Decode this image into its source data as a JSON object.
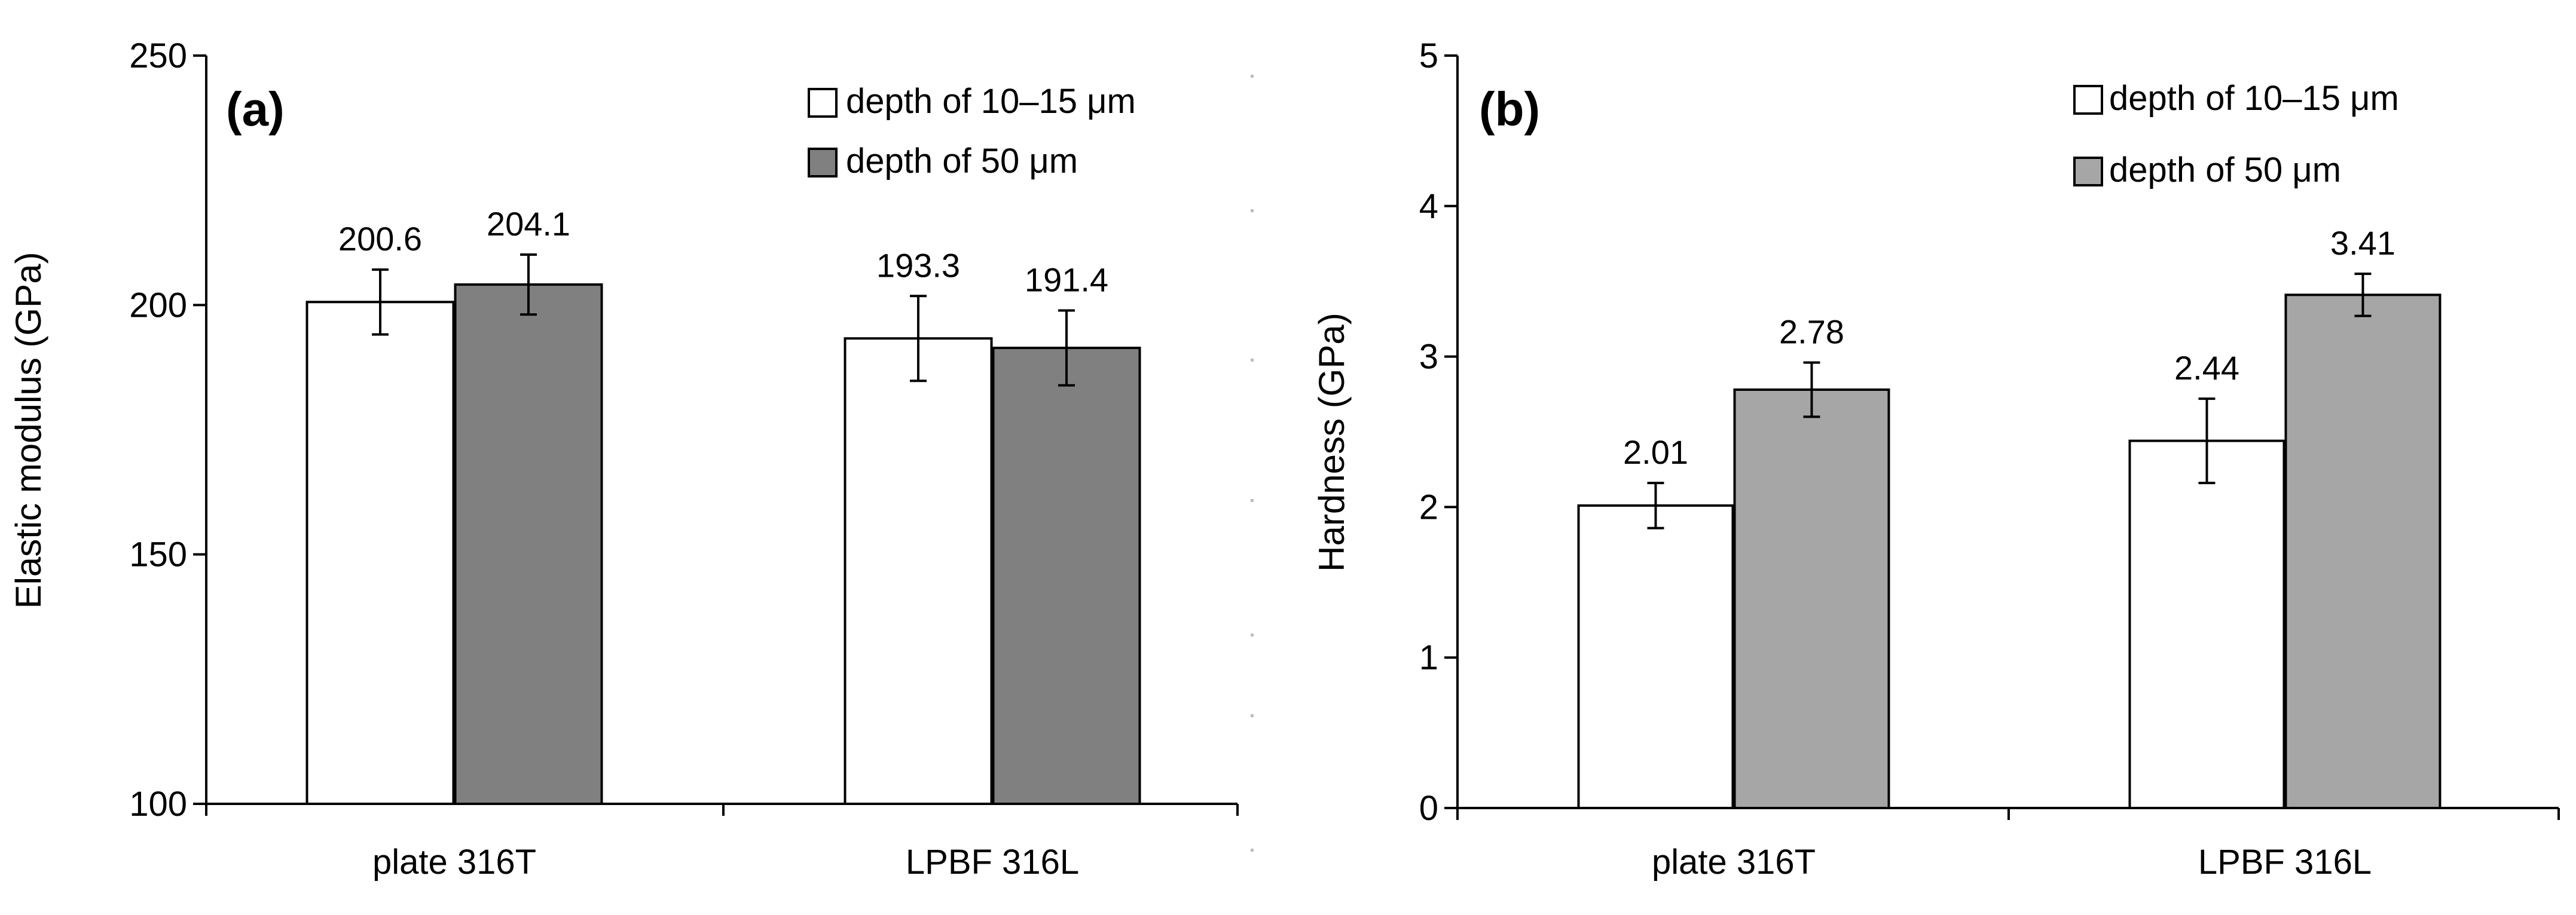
{
  "chart_data": [
    {
      "type": "bar",
      "panel": "(a)",
      "title": "",
      "xlabel": "",
      "ylabel": "Elastic modulus (GPa)",
      "ylim": [
        100,
        250
      ],
      "yticks": [
        100,
        150,
        200,
        250
      ],
      "grid": false,
      "legend_position": "top-right",
      "categories": [
        "plate  316T",
        "LPBF 316L"
      ],
      "series": [
        {
          "name": "depth of 10–15 μm",
          "color": "#ffffff",
          "values": [
            200.6,
            193.3
          ],
          "labels": [
            "200.6",
            "193.3"
          ],
          "error": [
            6.5,
            8.5
          ]
        },
        {
          "name": "depth of 50 μm",
          "color": "#808080",
          "values": [
            204.1,
            191.4
          ],
          "labels": [
            "204.1",
            "191.4"
          ],
          "error": [
            6.0,
            7.5
          ]
        }
      ]
    },
    {
      "type": "bar",
      "panel": "(b)",
      "title": "",
      "xlabel": "",
      "ylabel": "Hardness (GPa)",
      "ylim": [
        0,
        5
      ],
      "yticks": [
        0,
        1,
        2,
        3,
        4,
        5
      ],
      "grid": false,
      "legend_position": "top-right",
      "categories": [
        "plate  316T",
        "LPBF 316L"
      ],
      "series": [
        {
          "name": "depth of 10–15 μm",
          "color": "#ffffff",
          "values": [
            2.01,
            2.44
          ],
          "labels": [
            "2.01",
            "2.44"
          ],
          "error": [
            0.15,
            0.28
          ]
        },
        {
          "name": "depth of 50 μm",
          "color": "#a6a6a6",
          "values": [
            2.78,
            3.41
          ],
          "labels": [
            "2.78",
            "3.41"
          ],
          "error": [
            0.18,
            0.14
          ]
        }
      ]
    }
  ]
}
